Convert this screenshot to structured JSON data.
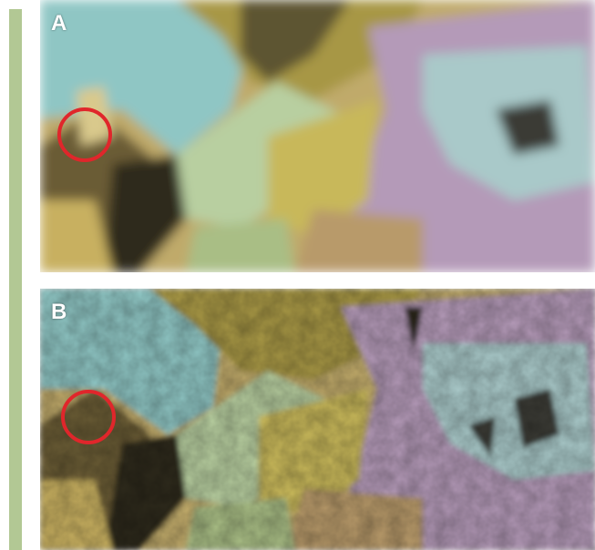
{
  "panels": [
    {
      "label": "A",
      "rendering": "pixelated"
    },
    {
      "label": "B",
      "rendering": "shaded-relief"
    }
  ],
  "colors": {
    "side_bar": "#b2c894",
    "highlight_circle": "#e0262b",
    "water_blue": "#8fc6c4",
    "low_yellow": "#c8b85a",
    "mid_olive": "#9a8d3c",
    "pale_green": "#b8cfa0",
    "tan": "#b89a6a",
    "mauve": "#b49ab8",
    "pale_cyan": "#a9c9c9",
    "shadow": "#2f2a1c"
  }
}
